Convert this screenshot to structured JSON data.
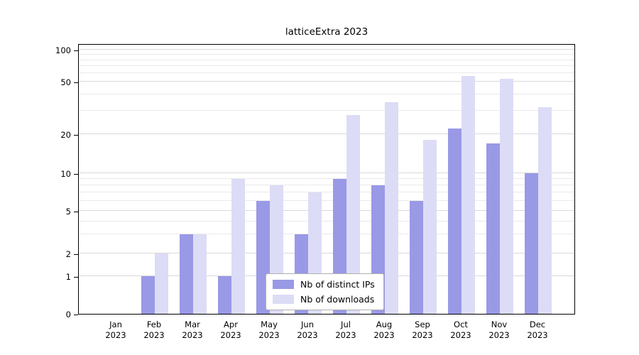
{
  "chart_data": {
    "type": "bar",
    "title": "latticeExtra 2023",
    "yscale": "log",
    "ylim": [
      0,
      100
    ],
    "yticks": [
      0,
      1,
      2,
      5,
      10,
      20,
      50,
      100
    ],
    "grid": true,
    "legend_position": "bottom-center",
    "categories": [
      "Jan 2023",
      "Feb 2023",
      "Mar 2023",
      "Apr 2023",
      "May 2023",
      "Jun 2023",
      "Jul 2023",
      "Aug 2023",
      "Sep 2023",
      "Oct 2023",
      "Nov 2023",
      "Dec 2023"
    ],
    "series": [
      {
        "name": "Nb of distinct IPs",
        "color": "#9999e6",
        "values": [
          0,
          1,
          3,
          1,
          6,
          3,
          9,
          8,
          6,
          22,
          17,
          10
        ]
      },
      {
        "name": "Nb of downloads",
        "color": "#dcdcf6",
        "values": [
          0,
          2,
          3,
          9,
          8,
          7,
          28,
          35,
          18,
          57,
          53,
          32
        ]
      }
    ]
  }
}
